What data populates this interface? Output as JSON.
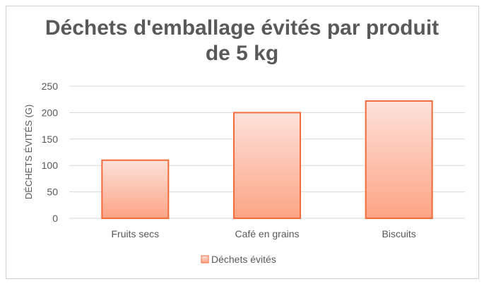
{
  "chart_data": {
    "type": "bar",
    "title": "Déchets d'emballage évités par produit de 5 kg",
    "title_lines": [
      "Déchets d'emballage évités par produit",
      "de 5 kg"
    ],
    "xlabel": "",
    "ylabel": "DÉCHETS ÉVITÉS (G)",
    "categories": [
      "Fruits secs",
      "Café en grains",
      "Biscuits"
    ],
    "series": [
      {
        "name": "Déchets évités",
        "values": [
          110,
          200,
          222
        ]
      }
    ],
    "ylim": [
      0,
      250
    ],
    "yticks": [
      0,
      50,
      100,
      150,
      200,
      250
    ],
    "grid": true,
    "legend": "bottom",
    "colors": {
      "bar_border": "#f26b3a",
      "bar_top": "#fde1da",
      "bar_bottom": "#fca484",
      "grid": "#d9d9d9",
      "text": "#595959"
    }
  }
}
